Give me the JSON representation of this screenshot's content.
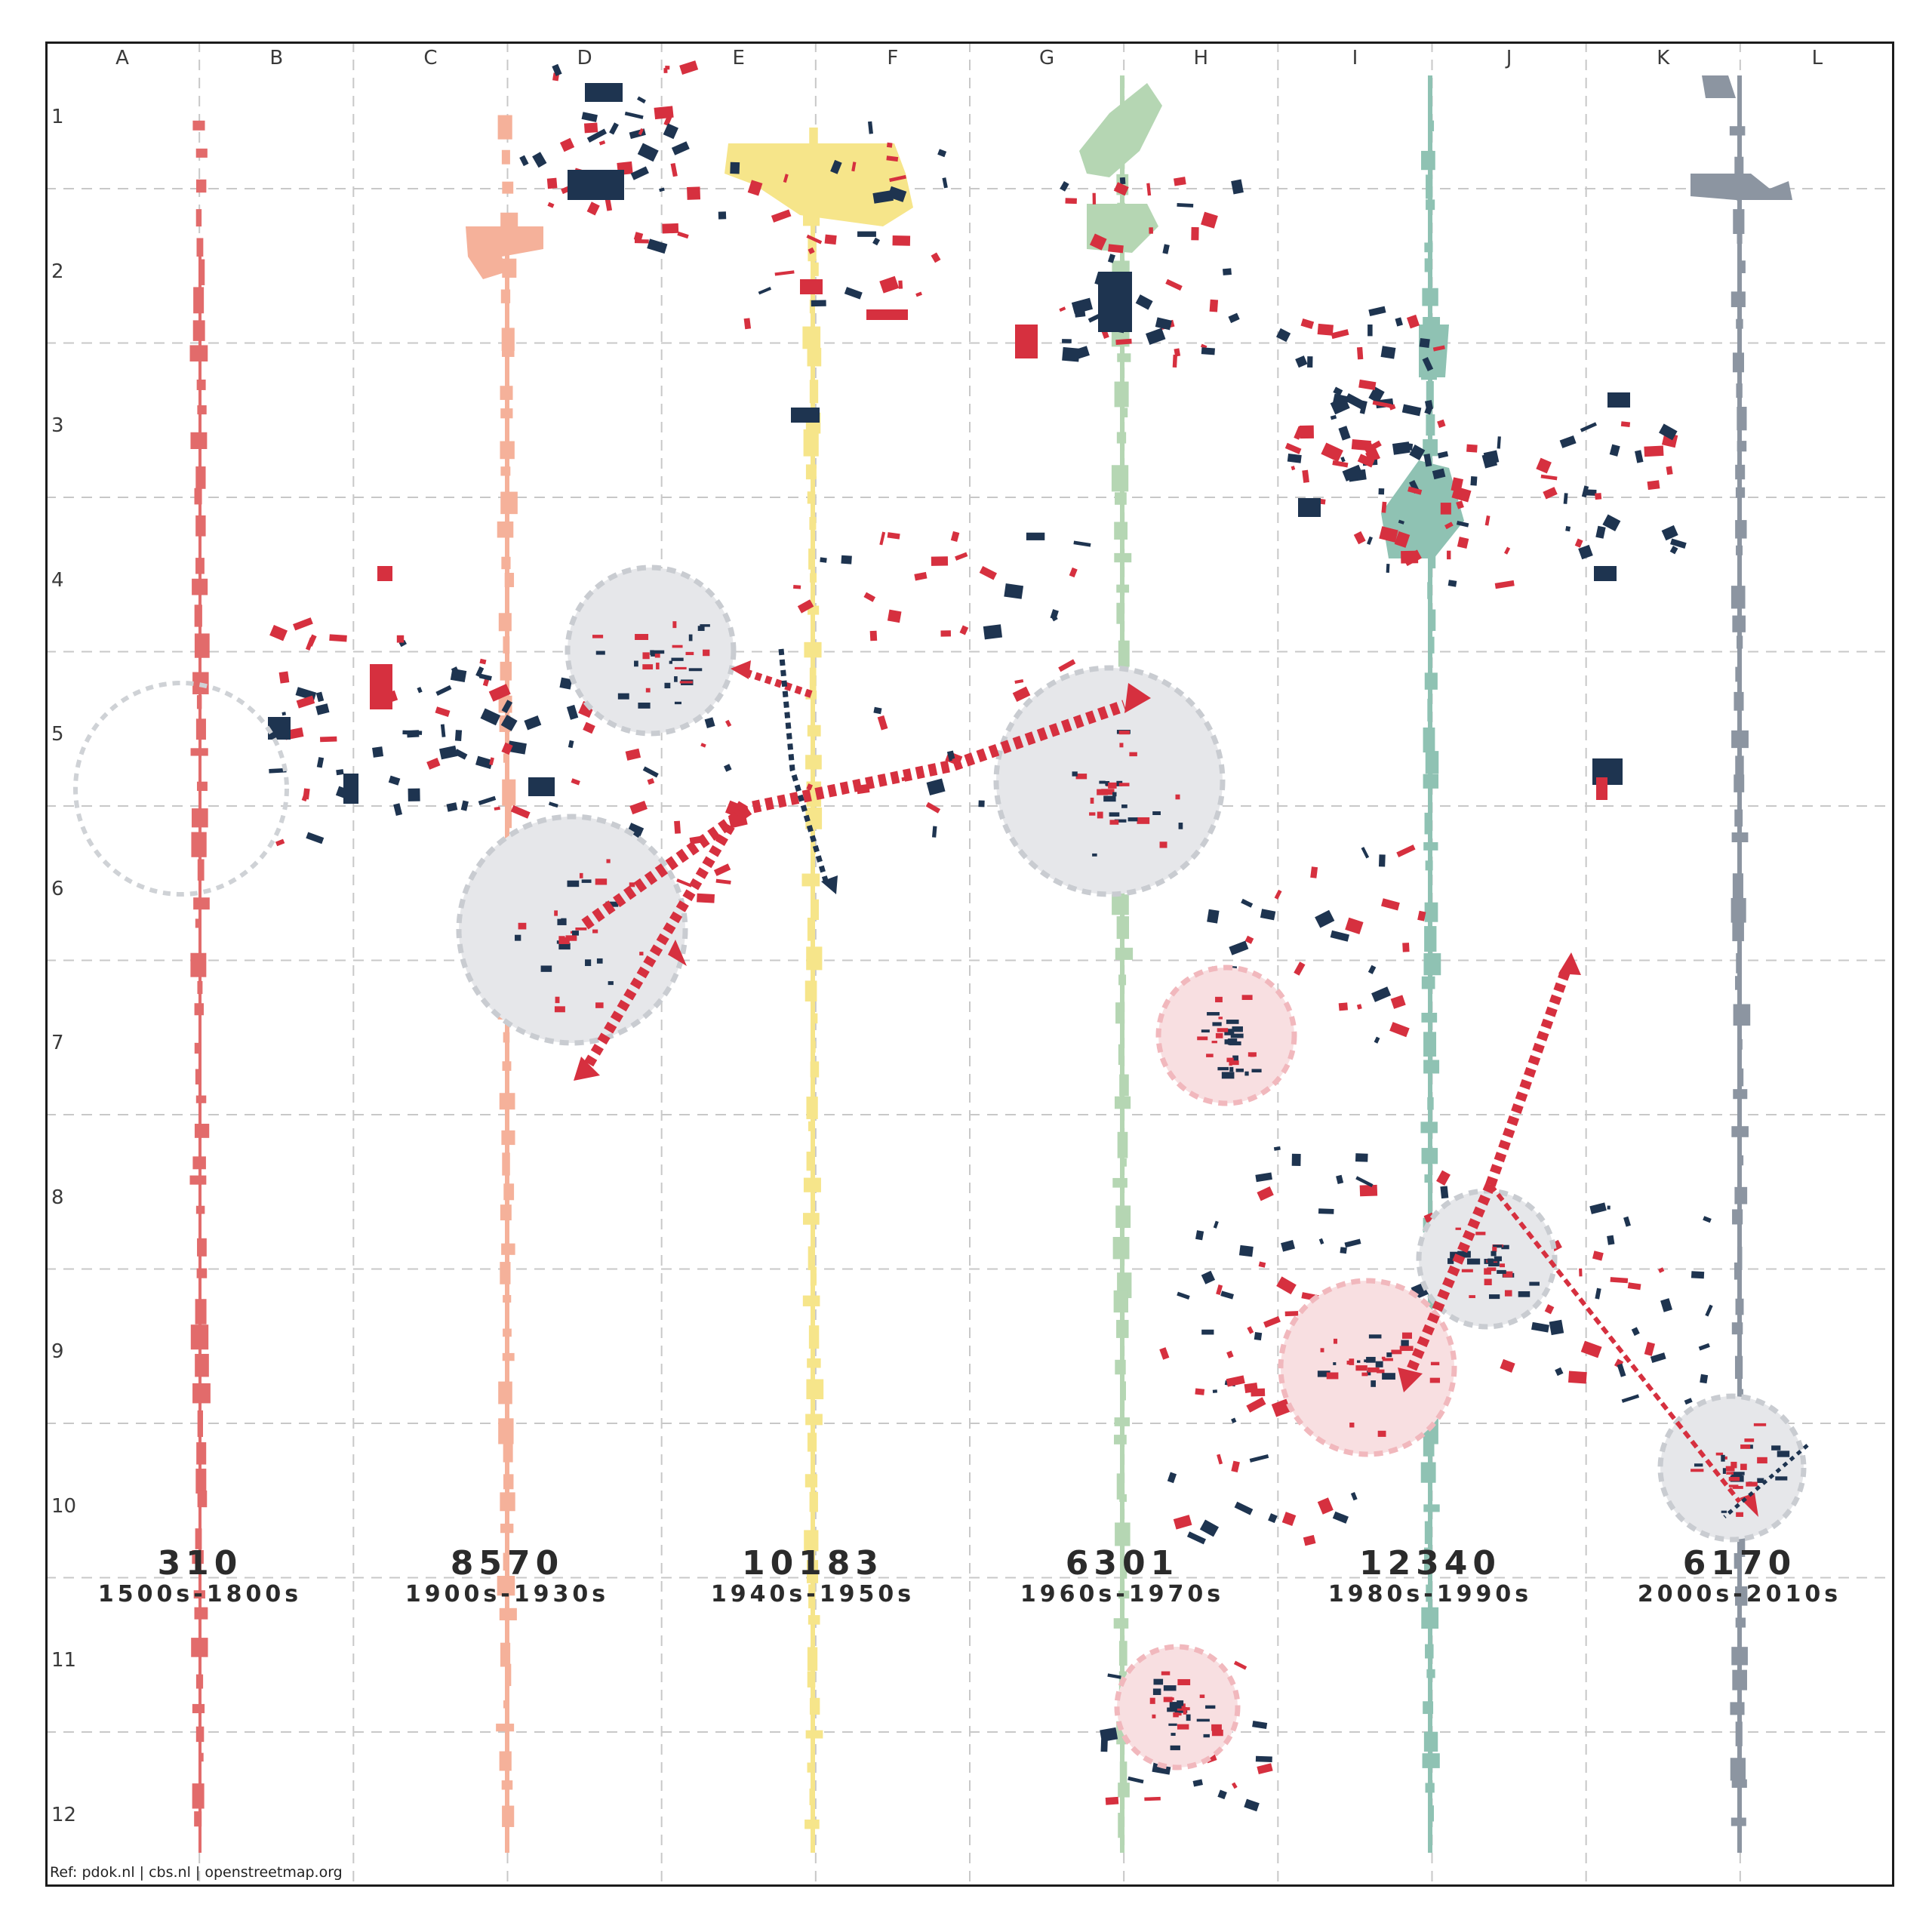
{
  "grid": {
    "columns": [
      "A",
      "B",
      "C",
      "D",
      "E",
      "F",
      "G",
      "H",
      "I",
      "J",
      "K",
      "L"
    ],
    "rows": [
      "1",
      "2",
      "3",
      "4",
      "5",
      "6",
      "7",
      "8",
      "9",
      "10",
      "11",
      "12"
    ]
  },
  "eras": [
    {
      "count": "310",
      "period": "1500s-1800s",
      "color": "#e26b6b"
    },
    {
      "count": "8570",
      "period": "1900s-1930s",
      "color": "#f5b19a"
    },
    {
      "count": "10183",
      "period": "1940s-1950s",
      "color": "#f6e58a"
    },
    {
      "count": "6301",
      "period": "1960s-1970s",
      "color": "#b5d6b3"
    },
    {
      "count": "12340",
      "period": "1980s-1990s",
      "color": "#8fc2b3"
    },
    {
      "count": "6170",
      "period": "2000s-2010s",
      "color": "#8c95a1"
    }
  ],
  "colors": {
    "accent_red": "#d6303f",
    "navy": "#1e3450",
    "circle_grey": "#e6e7ea",
    "circle_pink": "#f8dfe1",
    "grid": "#c8c8c8"
  },
  "reference": "Ref: pdok.nl | cbs.nl | openstreetmap.org"
}
